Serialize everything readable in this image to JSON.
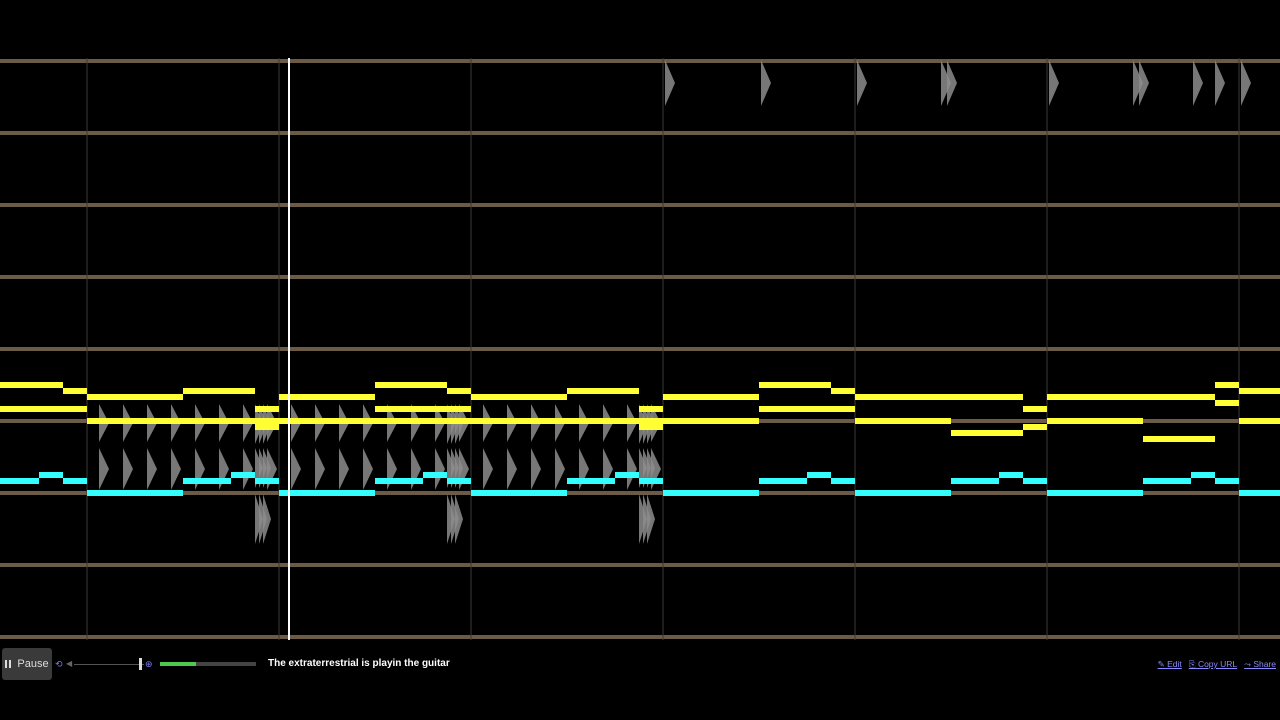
{
  "controls": {
    "pause_label": "Pause",
    "volume_fraction": 0.92,
    "playback_progress": 0.38,
    "song_title": "The extraterrestrial is playin the guitar"
  },
  "links": {
    "edit": "✎ Edit",
    "copy_url": "⎘ Copy URL",
    "share": "⤳ Share"
  },
  "colors": {
    "background": "#000000",
    "channel_line": "#6b5a45",
    "bar_line": "#3a3a3a",
    "playhead": "#ffffff",
    "lead_notes": "#ffff33",
    "bass_notes": "#33ffff",
    "drum_notes": "#8c8c8c",
    "progress_fill": "#4ec94e",
    "link": "#8a8aff"
  },
  "icons": [
    "pause-icon",
    "loop-icon",
    "volume-icon",
    "zoom-icon",
    "edit-icon",
    "copy-icon",
    "share-icon"
  ]
}
